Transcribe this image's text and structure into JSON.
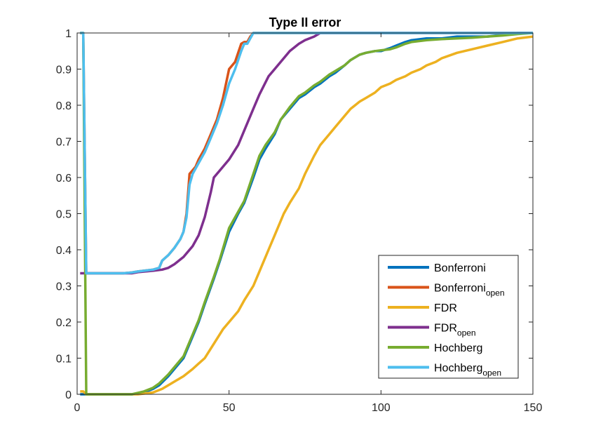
{
  "chart_data": {
    "type": "line",
    "title": "Type II error",
    "xlabel": "",
    "ylabel": "",
    "xlim": [
      0,
      150
    ],
    "ylim": [
      0,
      1
    ],
    "xticks": [
      0,
      50,
      100,
      150
    ],
    "yticks": [
      0,
      0.1,
      0.2,
      0.3,
      0.4,
      0.5,
      0.6,
      0.7,
      0.8,
      0.9,
      1
    ],
    "xtick_labels": [
      "0",
      "50",
      "100",
      "150"
    ],
    "ytick_labels": [
      "0",
      "0.1",
      "0.2",
      "0.3",
      "0.4",
      "0.5",
      "0.6",
      "0.7",
      "0.8",
      "0.9",
      "1"
    ],
    "grid": false,
    "legend_position": "bottom-right",
    "series": [
      {
        "name": "Bonferroni",
        "name_sub": "",
        "color": "#0072BD",
        "x": [
          1,
          2,
          3,
          5,
          10,
          15,
          18,
          20,
          22,
          25,
          27,
          30,
          33,
          35,
          38,
          40,
          42,
          45,
          47,
          50,
          53,
          55,
          58,
          60,
          62,
          65,
          67,
          70,
          73,
          75,
          78,
          80,
          83,
          85,
          88,
          90,
          93,
          95,
          98,
          100,
          103,
          105,
          108,
          110,
          115,
          120,
          125,
          130,
          135,
          140,
          145,
          150
        ],
        "y": [
          0,
          0,
          0,
          0,
          0,
          0,
          0,
          0.002,
          0.005,
          0.015,
          0.025,
          0.05,
          0.08,
          0.1,
          0.16,
          0.2,
          0.25,
          0.32,
          0.37,
          0.45,
          0.5,
          0.53,
          0.6,
          0.65,
          0.68,
          0.72,
          0.76,
          0.79,
          0.82,
          0.83,
          0.85,
          0.86,
          0.88,
          0.89,
          0.91,
          0.925,
          0.94,
          0.945,
          0.95,
          0.95,
          0.958,
          0.965,
          0.975,
          0.98,
          0.985,
          0.985,
          0.99,
          0.99,
          0.99,
          0.995,
          1.0,
          1.0
        ]
      },
      {
        "name": "Bonferroni",
        "name_sub": "open",
        "color": "#D95319",
        "x": [
          1,
          2,
          3,
          5,
          10,
          15,
          18,
          20,
          22,
          25,
          27,
          28,
          30,
          32,
          34,
          35,
          36,
          37,
          38,
          39,
          40,
          42,
          44,
          46,
          48,
          50,
          52,
          54,
          55,
          56,
          57,
          58,
          60,
          70,
          80,
          90,
          100,
          110,
          120,
          130,
          140,
          150
        ],
        "y": [
          1.0,
          1.0,
          0.335,
          0.335,
          0.335,
          0.335,
          0.337,
          0.34,
          0.342,
          0.345,
          0.35,
          0.37,
          0.385,
          0.405,
          0.43,
          0.45,
          0.5,
          0.61,
          0.62,
          0.63,
          0.65,
          0.68,
          0.72,
          0.76,
          0.82,
          0.9,
          0.92,
          0.97,
          0.975,
          0.975,
          0.99,
          1.0,
          1.0,
          1.0,
          1.0,
          1.0,
          1.0,
          1.0,
          1.0,
          1.0,
          1.0,
          1.0
        ]
      },
      {
        "name": "FDR",
        "name_sub": "",
        "color": "#EDB120",
        "x": [
          1,
          2,
          3,
          5,
          10,
          15,
          18,
          20,
          22,
          25,
          28,
          30,
          33,
          35,
          38,
          40,
          42,
          45,
          48,
          50,
          53,
          55,
          58,
          60,
          63,
          65,
          68,
          70,
          73,
          75,
          78,
          80,
          83,
          85,
          88,
          90,
          93,
          95,
          98,
          100,
          103,
          105,
          108,
          110,
          113,
          115,
          118,
          120,
          125,
          130,
          135,
          140,
          145,
          150
        ],
        "y": [
          0.008,
          0.008,
          0,
          0,
          0,
          0,
          0,
          0,
          0.002,
          0.005,
          0.015,
          0.025,
          0.04,
          0.05,
          0.07,
          0.085,
          0.1,
          0.14,
          0.18,
          0.2,
          0.23,
          0.26,
          0.3,
          0.34,
          0.4,
          0.44,
          0.5,
          0.53,
          0.57,
          0.61,
          0.66,
          0.69,
          0.72,
          0.74,
          0.77,
          0.79,
          0.81,
          0.82,
          0.835,
          0.85,
          0.86,
          0.87,
          0.88,
          0.89,
          0.9,
          0.91,
          0.92,
          0.93,
          0.945,
          0.955,
          0.965,
          0.975,
          0.985,
          0.99
        ]
      },
      {
        "name": "FDR",
        "name_sub": "open",
        "color": "#7E2F8E",
        "x": [
          1,
          2,
          3,
          5,
          10,
          15,
          18,
          20,
          25,
          28,
          30,
          32,
          35,
          38,
          40,
          42,
          44,
          45,
          47,
          50,
          53,
          55,
          58,
          60,
          63,
          65,
          68,
          70,
          73,
          75,
          78,
          80,
          82,
          85,
          90,
          100,
          110,
          120,
          130,
          140,
          150
        ],
        "y": [
          0.335,
          0.335,
          0.335,
          0.335,
          0.335,
          0.335,
          0.335,
          0.338,
          0.342,
          0.345,
          0.35,
          0.36,
          0.38,
          0.41,
          0.44,
          0.49,
          0.56,
          0.6,
          0.62,
          0.65,
          0.69,
          0.73,
          0.79,
          0.83,
          0.88,
          0.9,
          0.93,
          0.95,
          0.97,
          0.98,
          0.99,
          1.0,
          1.0,
          1.0,
          1.0,
          1.0,
          1.0,
          1.0,
          1.0,
          1.0,
          1.0
        ]
      },
      {
        "name": "Hochberg",
        "name_sub": "",
        "color": "#77AC30",
        "x": [
          1,
          2,
          3,
          5,
          10,
          15,
          18,
          20,
          22,
          25,
          27,
          30,
          33,
          35,
          38,
          40,
          42,
          45,
          47,
          50,
          53,
          55,
          58,
          60,
          62,
          65,
          67,
          70,
          73,
          75,
          78,
          80,
          83,
          85,
          88,
          90,
          93,
          95,
          98,
          100,
          103,
          105,
          108,
          110,
          115,
          120,
          125,
          130,
          135,
          140,
          145,
          150
        ],
        "y": [
          1.0,
          1.0,
          0,
          0,
          0,
          0,
          0,
          0.004,
          0.008,
          0.018,
          0.03,
          0.055,
          0.085,
          0.105,
          0.165,
          0.205,
          0.255,
          0.325,
          0.375,
          0.46,
          0.505,
          0.535,
          0.61,
          0.66,
          0.69,
          0.725,
          0.76,
          0.795,
          0.825,
          0.835,
          0.855,
          0.865,
          0.885,
          0.895,
          0.91,
          0.925,
          0.94,
          0.945,
          0.95,
          0.952,
          0.955,
          0.96,
          0.97,
          0.975,
          0.98,
          0.983,
          0.985,
          0.987,
          0.99,
          0.993,
          0.997,
          1.0
        ]
      },
      {
        "name": "Hochberg",
        "name_sub": "open",
        "color": "#4DBEEE",
        "x": [
          1,
          2,
          3,
          5,
          10,
          15,
          18,
          20,
          22,
          25,
          27,
          28,
          30,
          32,
          34,
          35,
          36,
          37,
          38,
          39,
          40,
          42,
          44,
          46,
          48,
          50,
          52,
          54,
          55,
          56,
          57,
          58,
          60,
          70,
          80,
          90,
          100,
          110,
          120,
          130,
          140,
          150
        ],
        "y": [
          1.0,
          1.0,
          0.335,
          0.335,
          0.335,
          0.335,
          0.337,
          0.34,
          0.342,
          0.345,
          0.35,
          0.37,
          0.385,
          0.405,
          0.43,
          0.45,
          0.49,
          0.58,
          0.61,
          0.625,
          0.64,
          0.67,
          0.71,
          0.75,
          0.8,
          0.86,
          0.9,
          0.95,
          0.97,
          0.97,
          0.985,
          1.0,
          1.0,
          1.0,
          1.0,
          1.0,
          1.0,
          1.0,
          1.0,
          1.0,
          1.0,
          1.0
        ]
      }
    ]
  }
}
